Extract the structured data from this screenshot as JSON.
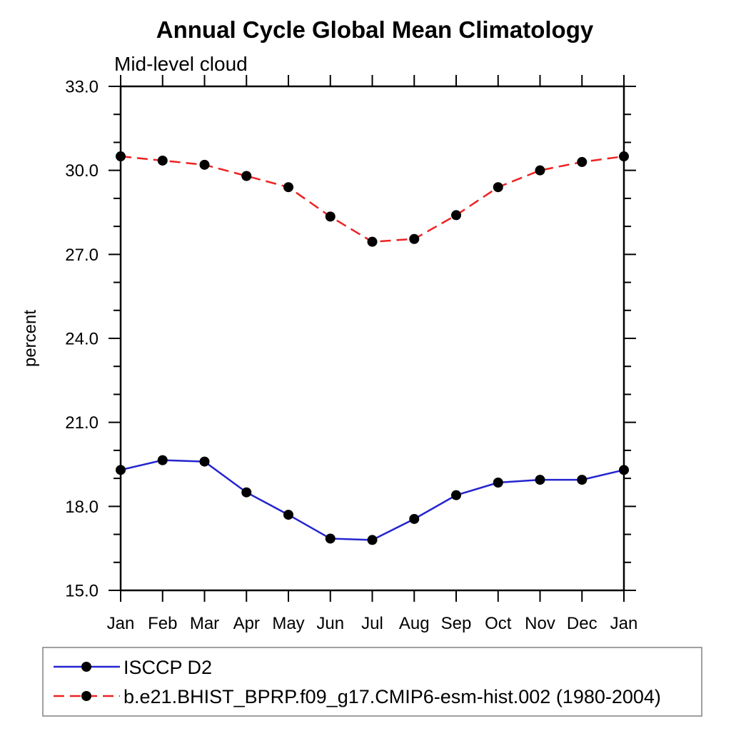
{
  "chart_data": {
    "type": "line",
    "title": "Annual Cycle Global Mean Climatology",
    "subtitle": "Mid-level cloud",
    "xlabel": "",
    "ylabel": "percent",
    "x_categories": [
      "Jan",
      "Feb",
      "Mar",
      "Apr",
      "May",
      "Jun",
      "Jul",
      "Aug",
      "Sep",
      "Oct",
      "Nov",
      "Dec",
      "Jan"
    ],
    "ylim": [
      15.0,
      33.0
    ],
    "ytick_values": [
      15,
      18,
      21,
      24,
      27,
      30,
      33
    ],
    "ytick_labels": [
      "15.0",
      "18.0",
      "21.0",
      "24.0",
      "27.0",
      "30.0",
      "33.0"
    ],
    "ytick_minor_interval": 1,
    "grid": false,
    "legend_position": "bottom-left-box",
    "series": [
      {
        "name": "ISCCP D2",
        "color": "#2424cf",
        "line_style": "solid",
        "marker": "filled-circle",
        "marker_color": "#000000",
        "values": [
          19.3,
          19.65,
          19.6,
          18.5,
          17.7,
          16.85,
          16.8,
          17.55,
          18.4,
          18.85,
          18.95,
          18.95,
          19.3
        ]
      },
      {
        "name": "b.e21.BHIST_BPRP.f09_g17.CMIP6-esm-hist.002 (1980-2004)",
        "color": "#ee2222",
        "line_style": "dashed",
        "marker": "filled-circle",
        "marker_color": "#000000",
        "values": [
          30.5,
          30.35,
          30.2,
          29.8,
          29.4,
          28.35,
          27.45,
          27.55,
          28.4,
          29.4,
          30.0,
          30.3,
          30.5
        ]
      }
    ],
    "colors": {
      "axis": "#000000",
      "legend_border": "#808080",
      "background": "#ffffff"
    }
  }
}
